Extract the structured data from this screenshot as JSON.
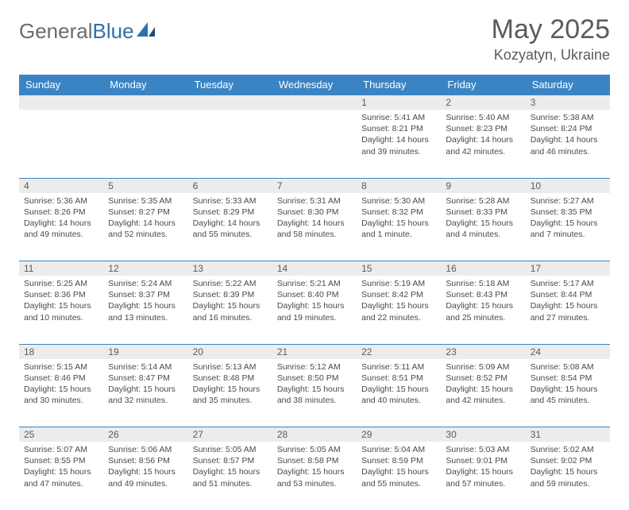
{
  "brand": {
    "part1": "General",
    "part2": "Blue"
  },
  "title": "May 2025",
  "location": "Kozyatyn, Ukraine",
  "colors": {
    "header_bg": "#3b84c4",
    "header_text": "#ffffff",
    "daynum_bg": "#ececec",
    "border": "#3b84c4",
    "text": "#4a4a4a",
    "title_text": "#5b5b5b"
  },
  "days_of_week": [
    "Sunday",
    "Monday",
    "Tuesday",
    "Wednesday",
    "Thursday",
    "Friday",
    "Saturday"
  ],
  "weeks": [
    {
      "nums": [
        "",
        "",
        "",
        "",
        "1",
        "2",
        "3"
      ],
      "cells": [
        null,
        null,
        null,
        null,
        {
          "sunrise": "5:41 AM",
          "sunset": "8:21 PM",
          "daylight": "14 hours and 39 minutes."
        },
        {
          "sunrise": "5:40 AM",
          "sunset": "8:23 PM",
          "daylight": "14 hours and 42 minutes."
        },
        {
          "sunrise": "5:38 AM",
          "sunset": "8:24 PM",
          "daylight": "14 hours and 46 minutes."
        }
      ]
    },
    {
      "nums": [
        "4",
        "5",
        "6",
        "7",
        "8",
        "9",
        "10"
      ],
      "cells": [
        {
          "sunrise": "5:36 AM",
          "sunset": "8:26 PM",
          "daylight": "14 hours and 49 minutes."
        },
        {
          "sunrise": "5:35 AM",
          "sunset": "8:27 PM",
          "daylight": "14 hours and 52 minutes."
        },
        {
          "sunrise": "5:33 AM",
          "sunset": "8:29 PM",
          "daylight": "14 hours and 55 minutes."
        },
        {
          "sunrise": "5:31 AM",
          "sunset": "8:30 PM",
          "daylight": "14 hours and 58 minutes."
        },
        {
          "sunrise": "5:30 AM",
          "sunset": "8:32 PM",
          "daylight": "15 hours and 1 minute."
        },
        {
          "sunrise": "5:28 AM",
          "sunset": "8:33 PM",
          "daylight": "15 hours and 4 minutes."
        },
        {
          "sunrise": "5:27 AM",
          "sunset": "8:35 PM",
          "daylight": "15 hours and 7 minutes."
        }
      ]
    },
    {
      "nums": [
        "11",
        "12",
        "13",
        "14",
        "15",
        "16",
        "17"
      ],
      "cells": [
        {
          "sunrise": "5:25 AM",
          "sunset": "8:36 PM",
          "daylight": "15 hours and 10 minutes."
        },
        {
          "sunrise": "5:24 AM",
          "sunset": "8:37 PM",
          "daylight": "15 hours and 13 minutes."
        },
        {
          "sunrise": "5:22 AM",
          "sunset": "8:39 PM",
          "daylight": "15 hours and 16 minutes."
        },
        {
          "sunrise": "5:21 AM",
          "sunset": "8:40 PM",
          "daylight": "15 hours and 19 minutes."
        },
        {
          "sunrise": "5:19 AM",
          "sunset": "8:42 PM",
          "daylight": "15 hours and 22 minutes."
        },
        {
          "sunrise": "5:18 AM",
          "sunset": "8:43 PM",
          "daylight": "15 hours and 25 minutes."
        },
        {
          "sunrise": "5:17 AM",
          "sunset": "8:44 PM",
          "daylight": "15 hours and 27 minutes."
        }
      ]
    },
    {
      "nums": [
        "18",
        "19",
        "20",
        "21",
        "22",
        "23",
        "24"
      ],
      "cells": [
        {
          "sunrise": "5:15 AM",
          "sunset": "8:46 PM",
          "daylight": "15 hours and 30 minutes."
        },
        {
          "sunrise": "5:14 AM",
          "sunset": "8:47 PM",
          "daylight": "15 hours and 32 minutes."
        },
        {
          "sunrise": "5:13 AM",
          "sunset": "8:48 PM",
          "daylight": "15 hours and 35 minutes."
        },
        {
          "sunrise": "5:12 AM",
          "sunset": "8:50 PM",
          "daylight": "15 hours and 38 minutes."
        },
        {
          "sunrise": "5:11 AM",
          "sunset": "8:51 PM",
          "daylight": "15 hours and 40 minutes."
        },
        {
          "sunrise": "5:09 AM",
          "sunset": "8:52 PM",
          "daylight": "15 hours and 42 minutes."
        },
        {
          "sunrise": "5:08 AM",
          "sunset": "8:54 PM",
          "daylight": "15 hours and 45 minutes."
        }
      ]
    },
    {
      "nums": [
        "25",
        "26",
        "27",
        "28",
        "29",
        "30",
        "31"
      ],
      "cells": [
        {
          "sunrise": "5:07 AM",
          "sunset": "8:55 PM",
          "daylight": "15 hours and 47 minutes."
        },
        {
          "sunrise": "5:06 AM",
          "sunset": "8:56 PM",
          "daylight": "15 hours and 49 minutes."
        },
        {
          "sunrise": "5:05 AM",
          "sunset": "8:57 PM",
          "daylight": "15 hours and 51 minutes."
        },
        {
          "sunrise": "5:05 AM",
          "sunset": "8:58 PM",
          "daylight": "15 hours and 53 minutes."
        },
        {
          "sunrise": "5:04 AM",
          "sunset": "8:59 PM",
          "daylight": "15 hours and 55 minutes."
        },
        {
          "sunrise": "5:03 AM",
          "sunset": "9:01 PM",
          "daylight": "15 hours and 57 minutes."
        },
        {
          "sunrise": "5:02 AM",
          "sunset": "9:02 PM",
          "daylight": "15 hours and 59 minutes."
        }
      ]
    }
  ],
  "labels": {
    "sunrise": "Sunrise: ",
    "sunset": "Sunset: ",
    "daylight": "Daylight: "
  }
}
